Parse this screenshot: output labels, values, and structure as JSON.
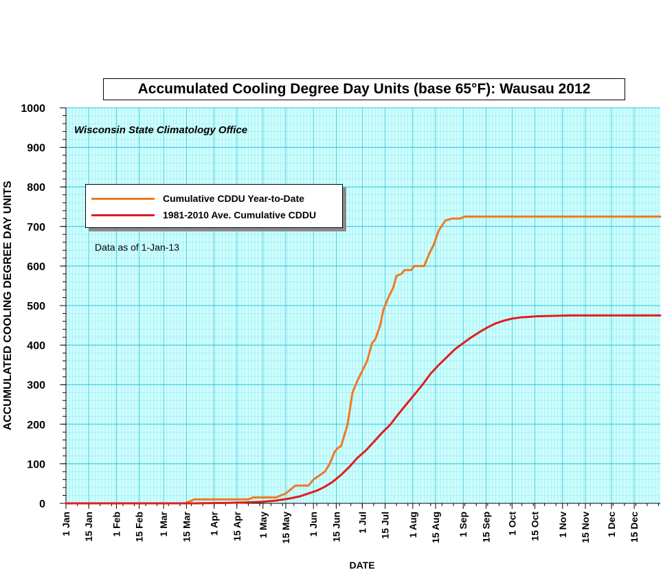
{
  "chart_data": {
    "type": "line",
    "title": "Accumulated Cooling Degree Day Units (base 65°F): Wausau 2012",
    "subtitle": "Wisconsin State Climatology Office",
    "note": "Data as of 1-Jan-13",
    "xlabel": "DATE",
    "ylabel": "ACCUMULATED COOLING DEGREE DAY UNITS",
    "ylim": [
      0,
      1000
    ],
    "yticks": [
      0,
      100,
      200,
      300,
      400,
      500,
      600,
      700,
      800,
      900,
      1000
    ],
    "x_ticks": [
      {
        "label": "1 Jan",
        "day": 1
      },
      {
        "label": "15 Jan",
        "day": 15
      },
      {
        "label": "1 Feb",
        "day": 32
      },
      {
        "label": "15 Feb",
        "day": 46
      },
      {
        "label": "1 Mar",
        "day": 61
      },
      {
        "label": "15 Mar",
        "day": 75
      },
      {
        "label": "1 Apr",
        "day": 92
      },
      {
        "label": "15 Apr",
        "day": 106
      },
      {
        "label": "1 May",
        "day": 122
      },
      {
        "label": "15 May",
        "day": 136
      },
      {
        "label": "1 Jun",
        "day": 153
      },
      {
        "label": "15 Jun",
        "day": 167
      },
      {
        "label": "1 Jul",
        "day": 183
      },
      {
        "label": "15 Jul",
        "day": 197
      },
      {
        "label": "1 Aug",
        "day": 214
      },
      {
        "label": "15 Aug",
        "day": 228
      },
      {
        "label": "1 Sep",
        "day": 245
      },
      {
        "label": "15 Sep",
        "day": 259
      },
      {
        "label": "1 Oct",
        "day": 275
      },
      {
        "label": "15 Oct",
        "day": 289
      },
      {
        "label": "1 Nov",
        "day": 306
      },
      {
        "label": "15 Nov",
        "day": 320
      },
      {
        "label": "1 Dec",
        "day": 336
      },
      {
        "label": "15 Dec",
        "day": 350
      }
    ],
    "grid": true,
    "legend_position": "upper-left",
    "series": [
      {
        "name": "Cumulative CDDU Year-to-Date",
        "color": "#f07820",
        "x": [
          1,
          74,
          77,
          80,
          113,
          116,
          130,
          133,
          136,
          139,
          142,
          144,
          150,
          152,
          160,
          162,
          165,
          167,
          169,
          172,
          175,
          177,
          180,
          183,
          185,
          187,
          190,
          193,
          196,
          199,
          202,
          205,
          208,
          211,
          214,
          217,
          220,
          222,
          225,
          227,
          230,
          235,
          238,
          241,
          244,
          247,
          249,
          251,
          254,
          259,
          366
        ],
        "y": [
          0,
          0,
          5,
          10,
          10,
          15,
          15,
          20,
          25,
          35,
          45,
          45,
          45,
          60,
          80,
          100,
          130,
          145,
          145,
          200,
          280,
          310,
          330,
          360,
          400,
          415,
          450,
          500,
          530,
          570,
          580,
          590,
          600,
          600,
          602,
          620,
          650,
          690,
          715,
          720,
          720,
          722,
          724,
          725,
          725,
          725,
          725,
          725,
          725,
          725,
          725
        ],
        "points": [
          [
            1,
            0
          ],
          [
            74,
            0
          ],
          [
            77,
            5
          ],
          [
            80,
            10
          ],
          [
            113,
            10
          ],
          [
            116,
            15
          ],
          [
            130,
            15
          ],
          [
            133,
            20
          ],
          [
            136,
            25
          ],
          [
            139,
            35
          ],
          [
            142,
            45
          ],
          [
            150,
            45
          ],
          [
            153,
            60
          ],
          [
            160,
            80
          ],
          [
            163,
            100
          ],
          [
            166,
            130
          ],
          [
            168,
            140
          ],
          [
            170,
            145
          ],
          [
            174,
            200
          ],
          [
            177,
            280
          ],
          [
            180,
            310
          ],
          [
            183,
            335
          ],
          [
            186,
            360
          ],
          [
            189,
            405
          ],
          [
            191,
            415
          ],
          [
            194,
            450
          ],
          [
            196,
            490
          ],
          [
            199,
            520
          ],
          [
            202,
            545
          ],
          [
            204,
            575
          ],
          [
            207,
            580
          ],
          [
            209,
            590
          ],
          [
            213,
            590
          ],
          [
            215,
            600
          ],
          [
            221,
            600
          ],
          [
            224,
            630
          ],
          [
            227,
            655
          ],
          [
            230,
            690
          ],
          [
            234,
            715
          ],
          [
            238,
            720
          ],
          [
            243,
            720
          ],
          [
            246,
            725
          ],
          [
            366,
            725
          ]
        ]
      },
      {
        "name": "1981-2010 Ave. Cumulative CDDU",
        "color": "#e21b1b",
        "points": [
          [
            1,
            0
          ],
          [
            80,
            0
          ],
          [
            100,
            1
          ],
          [
            110,
            2
          ],
          [
            122,
            4
          ],
          [
            130,
            7
          ],
          [
            138,
            12
          ],
          [
            145,
            18
          ],
          [
            150,
            25
          ],
          [
            155,
            32
          ],
          [
            160,
            42
          ],
          [
            165,
            55
          ],
          [
            170,
            72
          ],
          [
            175,
            92
          ],
          [
            180,
            115
          ],
          [
            185,
            133
          ],
          [
            190,
            155
          ],
          [
            195,
            178
          ],
          [
            200,
            198
          ],
          [
            205,
            225
          ],
          [
            210,
            250
          ],
          [
            215,
            275
          ],
          [
            220,
            300
          ],
          [
            225,
            328
          ],
          [
            230,
            350
          ],
          [
            235,
            370
          ],
          [
            240,
            390
          ],
          [
            245,
            405
          ],
          [
            250,
            420
          ],
          [
            255,
            433
          ],
          [
            260,
            445
          ],
          [
            265,
            455
          ],
          [
            270,
            462
          ],
          [
            275,
            467
          ],
          [
            280,
            470
          ],
          [
            290,
            473
          ],
          [
            300,
            474
          ],
          [
            310,
            475
          ],
          [
            366,
            475
          ]
        ]
      }
    ]
  }
}
